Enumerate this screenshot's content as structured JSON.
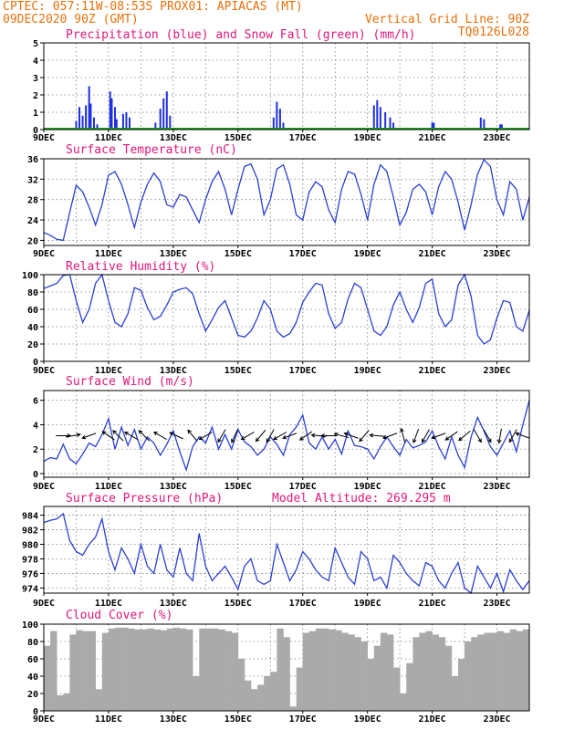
{
  "header": {
    "line1": "CPTEC:  057:11W-08:53S  PROX01: APIACAS (MT)",
    "line2_left": "09DEC2020 90Z (GMT)",
    "line2_right": "Vertical Grid Line: 90Z",
    "line3_right": "TQ0126L028"
  },
  "x_ticks": [
    "9DEC",
    "11DEC",
    "13DEC",
    "15DEC",
    "17DEC",
    "19DEC",
    "21DEC",
    "23DEC"
  ],
  "colors": {
    "header": "#e8700c",
    "title": "#e0187a",
    "line": "#2b3fd6",
    "precip": "#1f2fe0",
    "snow": "#1aa01a",
    "cloud": "#aaaaaa"
  },
  "chart_data": [
    {
      "type": "bar",
      "title": "Precipitation (blue) and Snow Fall (green) (mm/h)",
      "ylim": [
        0,
        5
      ],
      "yticks": [
        "0",
        "1",
        "2",
        "3",
        "4",
        "5"
      ],
      "x_range_days": [
        9,
        24
      ],
      "series": [
        {
          "name": "Precipitation",
          "points": [
            [
              10.0,
              0.5
            ],
            [
              10.1,
              1.3
            ],
            [
              10.2,
              0.8
            ],
            [
              10.3,
              1.4
            ],
            [
              10.4,
              2.5
            ],
            [
              10.45,
              1.5
            ],
            [
              10.55,
              0.7
            ],
            [
              10.65,
              0.3
            ],
            [
              11.05,
              2.2
            ],
            [
              11.1,
              1.8
            ],
            [
              11.2,
              1.3
            ],
            [
              11.25,
              0.6
            ],
            [
              11.45,
              0.9
            ],
            [
              11.55,
              1.0
            ],
            [
              11.65,
              0.7
            ],
            [
              12.45,
              0.4
            ],
            [
              12.6,
              1.2
            ],
            [
              12.7,
              1.8
            ],
            [
              12.8,
              2.2
            ],
            [
              12.9,
              0.8
            ],
            [
              16.1,
              0.7
            ],
            [
              16.2,
              1.6
            ],
            [
              16.3,
              1.2
            ],
            [
              16.4,
              0.4
            ],
            [
              19.2,
              1.4
            ],
            [
              19.3,
              1.7
            ],
            [
              19.4,
              1.3
            ],
            [
              19.55,
              1.0
            ],
            [
              19.7,
              0.7
            ],
            [
              19.8,
              0.4
            ],
            [
              21.0,
              0.4
            ],
            [
              21.05,
              0.4
            ],
            [
              22.5,
              0.7
            ],
            [
              22.6,
              0.6
            ],
            [
              23.1,
              0.3
            ],
            [
              23.15,
              0.3
            ]
          ]
        },
        {
          "name": "Snow Fall",
          "points": []
        }
      ]
    },
    {
      "type": "line",
      "title": "Surface Temperature (nC)",
      "ylim": [
        19,
        36
      ],
      "yticks": [
        "20",
        "24",
        "28",
        "32",
        "36"
      ],
      "x": [
        9.0,
        9.2,
        9.4,
        9.6,
        9.8,
        10.0,
        10.2,
        10.4,
        10.6,
        10.8,
        11.0,
        11.2,
        11.4,
        11.6,
        11.8,
        12.0,
        12.2,
        12.4,
        12.6,
        12.8,
        13.0,
        13.2,
        13.4,
        13.6,
        13.8,
        14.0,
        14.2,
        14.4,
        14.6,
        14.8,
        15.0,
        15.2,
        15.4,
        15.6,
        15.8,
        16.0,
        16.2,
        16.4,
        16.6,
        16.8,
        17.0,
        17.2,
        17.4,
        17.6,
        17.8,
        18.0,
        18.2,
        18.4,
        18.6,
        18.8,
        19.0,
        19.2,
        19.4,
        19.6,
        19.8,
        20.0,
        20.2,
        20.4,
        20.6,
        20.8,
        21.0,
        21.2,
        21.4,
        21.6,
        21.8,
        22.0,
        22.2,
        22.4,
        22.6,
        22.8,
        23.0,
        23.2,
        23.4,
        23.6,
        23.8,
        24.0
      ],
      "values": [
        21.5,
        21.0,
        20.2,
        20.0,
        25.5,
        30.8,
        29.5,
        26.5,
        23.0,
        27.0,
        32.8,
        33.5,
        31.0,
        27.0,
        22.5,
        27.5,
        31.0,
        33.2,
        31.5,
        27.0,
        26.5,
        29.0,
        28.5,
        26.0,
        23.5,
        28.0,
        31.5,
        33.5,
        30.0,
        25.0,
        30.0,
        34.5,
        35.0,
        32.0,
        25.0,
        28.0,
        34.0,
        34.8,
        31.0,
        25.0,
        24.0,
        29.5,
        31.5,
        30.5,
        26.0,
        23.5,
        30.0,
        33.5,
        33.0,
        29.0,
        24.0,
        31.0,
        34.8,
        33.5,
        28.5,
        23.0,
        25.5,
        30.0,
        31.0,
        29.5,
        25.0,
        30.5,
        33.5,
        32.0,
        27.5,
        22.0,
        27.0,
        33.0,
        35.8,
        34.5,
        28.0,
        25.0,
        31.5,
        30.0,
        24.0,
        28.5
      ]
    },
    {
      "type": "line",
      "title": "Relative Humidity (%)",
      "ylim": [
        0,
        100
      ],
      "yticks": [
        "0",
        "20",
        "40",
        "60",
        "80",
        "100"
      ],
      "x": [
        9.0,
        9.2,
        9.4,
        9.6,
        9.8,
        10.0,
        10.2,
        10.4,
        10.6,
        10.8,
        11.0,
        11.2,
        11.4,
        11.6,
        11.8,
        12.0,
        12.2,
        12.4,
        12.6,
        12.8,
        13.0,
        13.2,
        13.4,
        13.6,
        13.8,
        14.0,
        14.2,
        14.4,
        14.6,
        14.8,
        15.0,
        15.2,
        15.4,
        15.6,
        15.8,
        16.0,
        16.2,
        16.4,
        16.6,
        16.8,
        17.0,
        17.2,
        17.4,
        17.6,
        17.8,
        18.0,
        18.2,
        18.4,
        18.6,
        18.8,
        19.0,
        19.2,
        19.4,
        19.6,
        19.8,
        20.0,
        20.2,
        20.4,
        20.6,
        20.8,
        21.0,
        21.2,
        21.4,
        21.6,
        21.8,
        22.0,
        22.2,
        22.4,
        22.6,
        22.8,
        23.0,
        23.2,
        23.4,
        23.6,
        23.8,
        24.0
      ],
      "values": [
        84,
        87,
        90,
        99,
        100,
        70,
        45,
        60,
        90,
        100,
        70,
        45,
        40,
        55,
        85,
        82,
        62,
        48,
        52,
        65,
        80,
        83,
        85,
        78,
        55,
        35,
        48,
        62,
        70,
        50,
        30,
        28,
        35,
        50,
        70,
        60,
        35,
        28,
        32,
        45,
        68,
        80,
        90,
        88,
        55,
        38,
        45,
        72,
        90,
        85,
        60,
        35,
        30,
        40,
        65,
        80,
        60,
        45,
        62,
        90,
        95,
        55,
        40,
        48,
        88,
        100,
        75,
        30,
        20,
        25,
        50,
        70,
        68,
        40,
        35,
        59
      ]
    },
    {
      "type": "line",
      "title": "Surface Wind (m/s)",
      "ylim": [
        -0.3,
        6.8
      ],
      "yticks": [
        "0",
        "2",
        "4",
        "6"
      ],
      "x": [
        9.0,
        9.2,
        9.4,
        9.6,
        9.8,
        10.0,
        10.2,
        10.4,
        10.6,
        10.8,
        11.0,
        11.2,
        11.4,
        11.6,
        11.8,
        12.0,
        12.2,
        12.4,
        12.6,
        12.8,
        13.0,
        13.2,
        13.4,
        13.6,
        13.8,
        14.0,
        14.2,
        14.4,
        14.6,
        14.8,
        15.0,
        15.2,
        15.4,
        15.6,
        15.8,
        16.0,
        16.2,
        16.4,
        16.6,
        16.8,
        17.0,
        17.2,
        17.4,
        17.6,
        17.8,
        18.0,
        18.2,
        18.4,
        18.6,
        18.8,
        19.0,
        19.2,
        19.4,
        19.6,
        19.8,
        20.0,
        20.2,
        20.4,
        20.6,
        20.8,
        21.0,
        21.2,
        21.4,
        21.6,
        21.8,
        22.0,
        22.2,
        22.4,
        22.6,
        22.8,
        23.0,
        23.2,
        23.4,
        23.6,
        23.8,
        24.0
      ],
      "values": [
        1.0,
        1.3,
        1.2,
        2.4,
        1.2,
        0.8,
        1.6,
        2.5,
        2.2,
        3.2,
        4.5,
        2.0,
        3.8,
        2.3,
        3.6,
        2.0,
        3.0,
        2.5,
        1.5,
        2.4,
        3.5,
        1.8,
        0.3,
        2.2,
        3.0,
        2.5,
        3.8,
        2.0,
        3.2,
        2.0,
        3.6,
        2.6,
        2.2,
        1.5,
        2.0,
        3.0,
        2.4,
        1.5,
        3.2,
        3.8,
        4.8,
        2.5,
        2.0,
        3.0,
        2.0,
        2.8,
        1.6,
        3.5,
        2.3,
        2.2,
        2.0,
        1.2,
        2.2,
        3.0,
        2.2,
        1.5,
        2.8,
        2.1,
        2.3,
        2.6,
        3.5,
        2.2,
        1.2,
        3.0,
        1.5,
        0.5,
        3.0,
        4.6,
        3.5,
        2.2,
        1.5,
        2.5,
        3.5,
        1.8,
        4.0,
        6.0
      ],
      "arrows": [
        [
          9.6,
          0
        ],
        [
          9.9,
          10
        ],
        [
          10.4,
          200
        ],
        [
          11.0,
          145
        ],
        [
          11.3,
          135
        ],
        [
          11.7,
          150
        ],
        [
          12.1,
          135
        ],
        [
          12.6,
          150
        ],
        [
          13.1,
          155
        ],
        [
          13.6,
          130
        ],
        [
          14.0,
          210
        ],
        [
          14.5,
          240
        ],
        [
          14.9,
          245
        ],
        [
          15.3,
          210
        ],
        [
          15.7,
          230
        ],
        [
          16.0,
          240
        ],
        [
          16.3,
          210
        ],
        [
          16.6,
          200
        ],
        [
          17.1,
          215
        ],
        [
          17.5,
          175
        ],
        [
          17.8,
          180
        ],
        [
          18.2,
          165
        ],
        [
          18.5,
          160
        ],
        [
          18.9,
          230
        ],
        [
          19.3,
          175
        ],
        [
          19.7,
          200
        ],
        [
          20.1,
          105
        ],
        [
          20.5,
          250
        ],
        [
          20.8,
          240
        ],
        [
          21.2,
          200
        ],
        [
          21.6,
          215
        ],
        [
          22.0,
          220
        ],
        [
          22.4,
          300
        ],
        [
          22.7,
          300
        ],
        [
          23.1,
          260
        ],
        [
          23.5,
          240
        ],
        [
          23.8,
          160
        ]
      ]
    },
    {
      "type": "line",
      "title": "Surface Pressure (hPa)",
      "annotation": "Model Altitude: 269.295 m",
      "ylim": [
        973.3,
        985.2
      ],
      "yticks": [
        "974",
        "976",
        "978",
        "980",
        "982",
        "984"
      ],
      "x": [
        9.0,
        9.2,
        9.4,
        9.6,
        9.8,
        10.0,
        10.2,
        10.4,
        10.6,
        10.8,
        11.0,
        11.2,
        11.4,
        11.6,
        11.8,
        12.0,
        12.2,
        12.4,
        12.6,
        12.8,
        13.0,
        13.2,
        13.4,
        13.6,
        13.8,
        14.0,
        14.2,
        14.4,
        14.6,
        14.8,
        15.0,
        15.2,
        15.4,
        15.6,
        15.8,
        16.0,
        16.2,
        16.4,
        16.6,
        16.8,
        17.0,
        17.2,
        17.4,
        17.6,
        17.8,
        18.0,
        18.2,
        18.4,
        18.6,
        18.8,
        19.0,
        19.2,
        19.4,
        19.6,
        19.8,
        20.0,
        20.2,
        20.4,
        20.6,
        20.8,
        21.0,
        21.2,
        21.4,
        21.6,
        21.8,
        22.0,
        22.2,
        22.4,
        22.6,
        22.8,
        23.0,
        23.2,
        23.4,
        23.6,
        23.8,
        24.0
      ],
      "values": [
        983.0,
        983.3,
        983.5,
        984.2,
        980.5,
        979.0,
        978.5,
        980.0,
        981.0,
        983.5,
        979.0,
        976.5,
        979.5,
        978.0,
        976.0,
        980.0,
        977.0,
        976.0,
        980.0,
        976.5,
        975.5,
        979.5,
        976.0,
        975.0,
        981.5,
        977.0,
        975.0,
        976.0,
        977.0,
        975.5,
        973.8,
        977.0,
        978.0,
        975.0,
        974.5,
        975.0,
        980.0,
        977.5,
        975.0,
        976.5,
        979.0,
        978.0,
        976.5,
        975.5,
        975.0,
        979.5,
        977.5,
        975.5,
        974.5,
        979.0,
        978.0,
        975.0,
        975.5,
        974.0,
        978.5,
        977.5,
        976.0,
        975.0,
        974.3,
        977.5,
        977.0,
        975.0,
        974.0,
        976.0,
        977.5,
        974.0,
        973.3,
        977.0,
        975.5,
        974.0,
        976.0,
        973.5,
        976.5,
        975.0,
        973.8,
        975.0
      ]
    },
    {
      "type": "bar",
      "title": "Cloud Cover (%)",
      "ylim": [
        0,
        100
      ],
      "yticks": [
        "0",
        "20",
        "40",
        "60",
        "80",
        "100"
      ],
      "x": [
        9.0,
        9.2,
        9.4,
        9.6,
        9.8,
        10.0,
        10.2,
        10.4,
        10.6,
        10.8,
        11.0,
        11.2,
        11.4,
        11.6,
        11.8,
        12.0,
        12.2,
        12.4,
        12.6,
        12.8,
        13.0,
        13.2,
        13.4,
        13.6,
        13.8,
        14.0,
        14.2,
        14.4,
        14.6,
        14.8,
        15.0,
        15.2,
        15.4,
        15.6,
        15.8,
        16.0,
        16.2,
        16.4,
        16.6,
        16.8,
        17.0,
        17.2,
        17.4,
        17.6,
        17.8,
        18.0,
        18.2,
        18.4,
        18.6,
        18.8,
        19.0,
        19.2,
        19.4,
        19.6,
        19.8,
        20.0,
        20.2,
        20.4,
        20.6,
        20.8,
        21.0,
        21.2,
        21.4,
        21.6,
        21.8,
        22.0,
        22.2,
        22.4,
        22.6,
        22.8,
        23.0,
        23.2,
        23.4,
        23.6,
        23.8,
        24.0
      ],
      "values": [
        75,
        92,
        18,
        20,
        88,
        93,
        92,
        92,
        25,
        90,
        95,
        96,
        96,
        95,
        94,
        94,
        95,
        94,
        93,
        95,
        96,
        95,
        94,
        40,
        95,
        95,
        95,
        94,
        92,
        90,
        60,
        35,
        25,
        30,
        40,
        45,
        95,
        85,
        5,
        50,
        90,
        92,
        95,
        95,
        94,
        93,
        90,
        88,
        85,
        80,
        60,
        75,
        90,
        88,
        50,
        20,
        55,
        85,
        90,
        92,
        88,
        85,
        75,
        40,
        60,
        80,
        85,
        88,
        90,
        90,
        92,
        90,
        94,
        92,
        94,
        92
      ]
    }
  ]
}
